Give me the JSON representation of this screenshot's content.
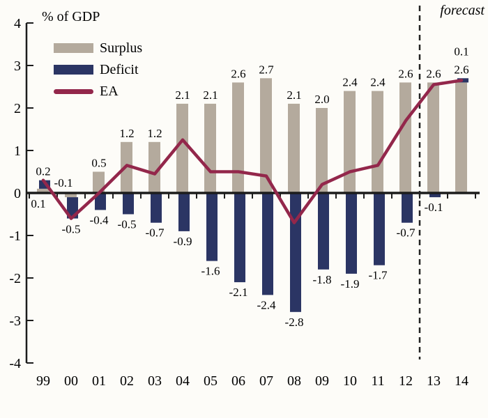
{
  "chart_data": {
    "type": "bar",
    "subtype": "stacked-bars-with-line-overlay",
    "axis_title": "% of GDP",
    "forecast_label": "forecast",
    "categories": [
      "99",
      "00",
      "01",
      "02",
      "03",
      "04",
      "05",
      "06",
      "07",
      "08",
      "09",
      "10",
      "11",
      "12",
      "13",
      "14"
    ],
    "series": [
      {
        "name": "Surplus",
        "type": "bar",
        "color": "#b4aa9d",
        "values": [
          0.1,
          -0.1,
          0.5,
          1.2,
          1.2,
          2.1,
          2.1,
          2.6,
          2.7,
          2.1,
          2.0,
          2.4,
          2.4,
          2.6,
          2.6,
          2.6
        ]
      },
      {
        "name": "Deficit",
        "type": "bar",
        "color": "#2b3564",
        "values": [
          0.2,
          -0.5,
          -0.4,
          -0.5,
          -0.7,
          -0.9,
          -1.6,
          -2.1,
          -2.4,
          -2.8,
          -1.8,
          -1.9,
          -1.7,
          -0.7,
          -0.1,
          0.1
        ]
      },
      {
        "name": "EA",
        "type": "line",
        "color": "#93274b",
        "values": [
          0.3,
          -0.6,
          0.0,
          0.65,
          0.45,
          1.25,
          0.5,
          0.5,
          0.4,
          -0.7,
          0.2,
          0.5,
          0.65,
          1.7,
          2.55,
          2.65
        ]
      }
    ],
    "stacked": true,
    "ylim": [
      -4,
      4
    ],
    "yticks": [
      "4",
      "3",
      "2",
      "1",
      "0",
      "-1",
      "-2",
      "-3",
      "-4"
    ],
    "grid": false,
    "legend_position": "top-left",
    "forecast_divider_between": [
      "12",
      "13"
    ],
    "bar_label_decimals": 1
  },
  "colors": {
    "axis": "#1c1c1c",
    "divider": "#222222",
    "label_text": "#000000",
    "background": "#fdfcf8"
  }
}
